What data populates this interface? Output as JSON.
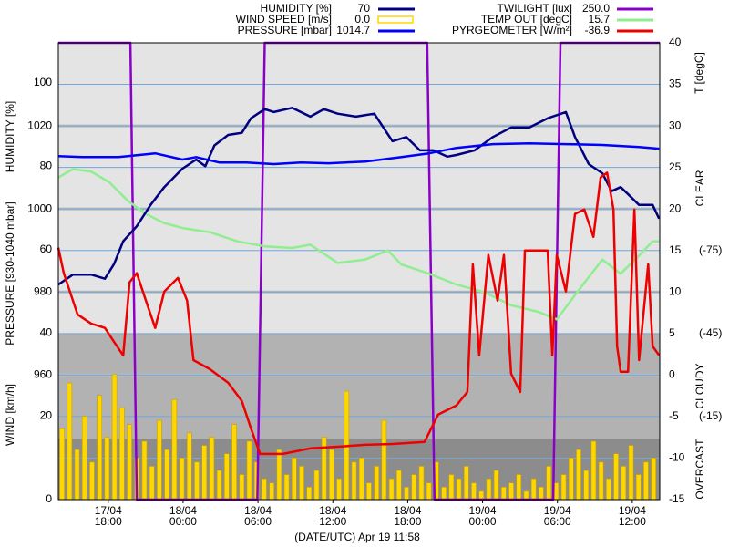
{
  "chart_data": {
    "type": "line",
    "x_label": "(DATE/UTC) Apr 19 11:58",
    "xlim": [
      14,
      62.2
    ],
    "xticks": [
      {
        "value": 18,
        "label": "17/04 18:00"
      },
      {
        "value": 24,
        "label": "18/04 00:00"
      },
      {
        "value": 30,
        "label": "18/04 06:00"
      },
      {
        "value": 36,
        "label": "18/04 12:00"
      },
      {
        "value": 42,
        "label": "18/04 18:00"
      },
      {
        "value": 48,
        "label": "19/04 00:00"
      },
      {
        "value": 54,
        "label": "19/04 06:00"
      },
      {
        "value": 60,
        "label": "19/04 12:00"
      }
    ],
    "axes": {
      "humidity": {
        "label": "HUMIDITY [%]",
        "ylim": [
          0,
          109.6
        ],
        "yticks": [
          40,
          60,
          80,
          100
        ],
        "side": "left"
      },
      "pressure": {
        "label": "PRESSURE [930-1040 mbar]",
        "ylim": [
          930,
          1040
        ],
        "yticks": [
          960,
          980,
          1000,
          1020
        ],
        "side": "left",
        "grid_color": "#bbbbbb"
      },
      "wind": {
        "label": "WIND [km/h]",
        "ylim": [
          0,
          109.6
        ],
        "yticks": [
          0,
          20
        ],
        "side": "left"
      },
      "temp": {
        "label": "T [degC]",
        "ylim": [
          -15,
          40
        ],
        "yticks": [
          -15,
          -10,
          -5,
          0,
          5,
          10,
          15,
          20,
          25,
          30,
          35,
          40
        ],
        "side": "right",
        "grid_color": "#6fa8dc"
      },
      "pyrgeometer": {
        "ylim": [
          15,
          -150
        ],
        "yticks": [
          {
            "value": -75,
            "label": "(-75)"
          },
          {
            "value": -45,
            "label": "(-45)"
          },
          {
            "value": -15,
            "label": "(-15)"
          }
        ],
        "side": "far-right"
      },
      "twilight": {
        "ylim": [
          0,
          250
        ]
      }
    },
    "sky_bands": [
      {
        "label": "CLEAR",
        "from": -150,
        "to": -45,
        "color": "#e4e4e4"
      },
      {
        "label": "CLOUDY",
        "from": -45,
        "to": -7,
        "color": "#b2b2b2"
      },
      {
        "label": "OVERCAST",
        "from": -7,
        "to": 15,
        "color": "#8c8c8c"
      }
    ],
    "series": [
      {
        "name": "HUMIDITY [%]",
        "current": "70",
        "color": "#000080",
        "axis": "humidity",
        "type": "line",
        "x": [
          14.0,
          15.17,
          16.63,
          17.73,
          18.46,
          19.2,
          20.29,
          21.39,
          22.49,
          23.95,
          25.05,
          25.78,
          26.51,
          27.61,
          28.71,
          29.44,
          30.54,
          31.27,
          32.73,
          34.2,
          35.29,
          36.39,
          37.85,
          39.32,
          40.05,
          40.78,
          41.88,
          42.98,
          44.07,
          45.17,
          45.9,
          47.37,
          48.83,
          50.29,
          51.76,
          53.22,
          54.68,
          55.41,
          56.51,
          57.61,
          58.34,
          59.07,
          59.8,
          60.54,
          61.63,
          62.15
        ],
        "values": [
          51.6,
          54,
          54,
          53,
          56.5,
          62,
          65.6,
          70.7,
          75,
          79.4,
          81.6,
          80,
          85,
          87.5,
          88,
          91.5,
          93.7,
          93,
          94,
          91.9,
          93.7,
          92.6,
          91.9,
          92.6,
          89.3,
          86,
          87,
          83.8,
          83.8,
          82.3,
          82.7,
          83.8,
          87,
          89.3,
          89.3,
          91.5,
          93,
          87,
          80.5,
          78.3,
          74,
          75,
          72.9,
          70.7,
          70.7,
          67.4
        ]
      },
      {
        "name": "WIND SPEED [m/s]",
        "current": "0.0",
        "color": "#ffd700",
        "axis": "wind",
        "type": "bar",
        "x": [
          14.3,
          14.9,
          15.5,
          16.1,
          16.7,
          17.3,
          17.9,
          18.5,
          19.1,
          19.7,
          20.3,
          20.9,
          21.5,
          22.1,
          22.7,
          23.3,
          23.9,
          24.5,
          25.1,
          25.7,
          26.3,
          26.9,
          27.5,
          28.1,
          28.7,
          29.3,
          29.9,
          30.5,
          31.1,
          31.7,
          32.3,
          32.9,
          33.5,
          34.1,
          34.7,
          35.3,
          35.9,
          36.5,
          37.1,
          37.7,
          38.3,
          38.9,
          39.5,
          40.1,
          40.7,
          41.3,
          41.9,
          42.5,
          43.1,
          43.7,
          44.3,
          44.9,
          45.5,
          46.1,
          46.7,
          47.3,
          47.9,
          48.5,
          49.1,
          49.7,
          50.3,
          50.9,
          51.5,
          52.1,
          52.7,
          53.3,
          53.9,
          54.5,
          55.1,
          55.7,
          56.3,
          56.9,
          57.5,
          58.1,
          58.7,
          59.3,
          59.9,
          60.5,
          61.1,
          61.7
        ],
        "values": [
          17,
          28,
          12,
          20,
          9,
          25,
          15,
          30,
          22,
          18,
          10,
          14,
          8,
          19,
          12,
          24,
          10,
          16,
          9,
          13,
          15,
          7,
          11,
          18,
          6,
          14,
          9,
          5,
          4,
          12,
          6,
          10,
          8,
          3,
          7,
          15,
          12,
          5,
          26,
          9,
          10,
          4,
          8,
          19,
          5,
          7,
          3,
          6,
          8,
          4,
          9,
          3,
          6,
          5,
          8,
          4,
          2,
          5,
          7,
          3,
          4,
          6,
          2,
          5,
          3,
          8,
          4,
          6,
          10,
          12,
          7,
          14,
          9,
          5,
          11,
          8,
          13,
          6,
          9,
          10
        ]
      },
      {
        "name": "PRESSURE [mbar]",
        "current": "1014.7",
        "color": "#0000ff",
        "axis": "pressure",
        "type": "line",
        "x": [
          14.0,
          15.9,
          18.83,
          21.76,
          23.95,
          25.05,
          26.88,
          29.07,
          31.27,
          33.46,
          35.66,
          38.59,
          41.51,
          43.71,
          45.9,
          48.83,
          51.76,
          54.68,
          57.61,
          60.54,
          62.15
        ],
        "values": [
          1012.7,
          1012.5,
          1012.5,
          1013.4,
          1011.9,
          1012.5,
          1011.2,
          1011.2,
          1010.8,
          1011.2,
          1011,
          1011.4,
          1012.5,
          1013.4,
          1014.7,
          1015.6,
          1015.8,
          1015.6,
          1015.4,
          1014.9,
          1014.5
        ]
      },
      {
        "name": "TWILIGHT [lux]",
        "current": "250.0",
        "color": "#8a00c8",
        "axis": "twilight",
        "type": "line",
        "x": [
          14.0,
          19.78,
          20.29,
          29.95,
          30.54,
          43.56,
          44.15,
          53.66,
          54.24,
          62.2
        ],
        "values": [
          250,
          250,
          0,
          0,
          250,
          250,
          0,
          0,
          250,
          250
        ]
      },
      {
        "name": "TEMP OUT [degC]",
        "current": "15.7",
        "color": "#90ee90",
        "axis": "temp",
        "type": "line",
        "x": [
          14.0,
          15.17,
          16.63,
          18.1,
          19.56,
          21.02,
          22.49,
          23.95,
          26.15,
          28.34,
          30.54,
          32.73,
          34.2,
          36.39,
          38.59,
          40.41,
          41.51,
          43.71,
          45.9,
          48.1,
          50.29,
          52.49,
          53.95,
          55.05,
          56.15,
          57.61,
          59.07,
          60.54,
          61.63,
          62.15
        ],
        "values": [
          23.8,
          24.8,
          24.5,
          23.2,
          21,
          19.4,
          18.3,
          17.7,
          17.2,
          16.1,
          15.5,
          15.3,
          15.7,
          13.5,
          13.9,
          15,
          13.3,
          12.2,
          10.9,
          10,
          8.4,
          7.6,
          6.7,
          8.9,
          11.1,
          13.9,
          12.2,
          14.4,
          16.1,
          16.1
        ]
      },
      {
        "name": "PYRGEOMETER [W/m²]",
        "current": "-36.9",
        "color": "#ee0000",
        "axis": "pyrgeometer",
        "type": "line",
        "x": [
          14.0,
          14.44,
          15.54,
          16.63,
          17.73,
          18.46,
          19.2,
          19.71,
          20.29,
          21.02,
          21.76,
          22.49,
          23.59,
          24.32,
          24.83,
          26.15,
          27.61,
          28.71,
          29.44,
          30.17,
          32.0,
          34.2,
          36.39,
          38.59,
          40.78,
          43.34,
          44.44,
          45.9,
          46.78,
          47.22,
          47.73,
          48.46,
          49.2,
          49.71,
          50.29,
          51.02,
          51.39,
          52.49,
          53.22,
          53.59,
          53.95,
          54.68,
          55.41,
          56.15,
          56.88,
          57.46,
          57.98,
          58.49,
          58.78,
          59.07,
          59.66,
          60.17,
          60.54,
          61.27,
          61.63,
          62.15
        ],
        "values": [
          -76,
          -66.8,
          -51.9,
          -48.6,
          -47,
          -42,
          -37.1,
          -63.5,
          -66.8,
          -56.9,
          -47,
          -60.2,
          -65.1,
          -56.9,
          -35.4,
          -32.1,
          -27.2,
          -20.6,
          -10.7,
          -1.5,
          -1.5,
          -3.5,
          -4.1,
          -4.8,
          -5.1,
          -5.8,
          -15.7,
          -19,
          -23.9,
          -70,
          -37.1,
          -73.4,
          -56.9,
          -73.4,
          -30.5,
          -23.9,
          -75,
          -75,
          -75,
          -37.1,
          -73.4,
          -60.2,
          -88.2,
          -89.8,
          -79.9,
          -101.4,
          -103.1,
          -89.8,
          -40.4,
          -31.2,
          -31.2,
          -89.8,
          -35.4,
          -70,
          -40.4,
          -37.1
        ]
      }
    ]
  }
}
